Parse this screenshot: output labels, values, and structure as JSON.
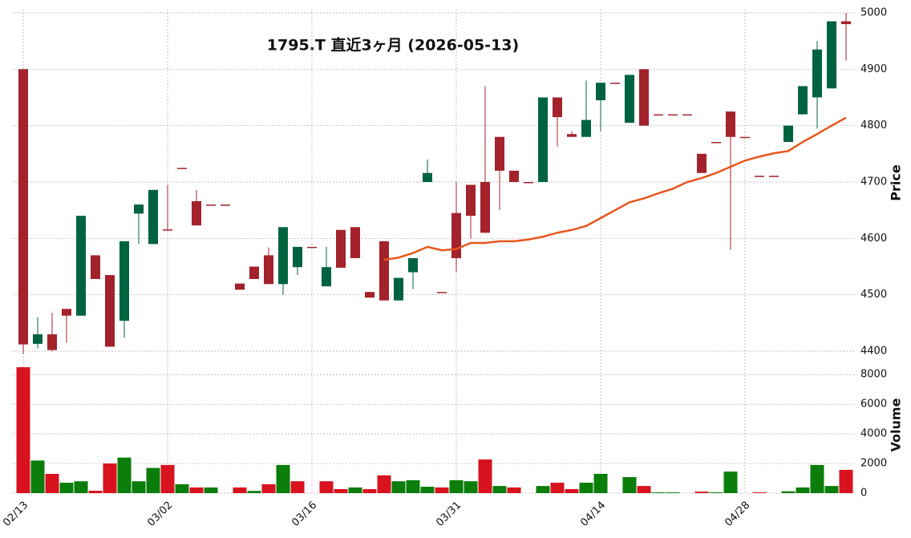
{
  "chart_data": {
    "type": "candlestick",
    "title": "1795.T  直近3ヶ月  (2026-05-13)",
    "categories": [
      "02/13",
      null,
      null,
      null,
      null,
      null,
      null,
      null,
      null,
      null,
      "03/02",
      null,
      null,
      null,
      null,
      null,
      null,
      null,
      null,
      null,
      "03/16",
      null,
      null,
      null,
      null,
      null,
      null,
      null,
      null,
      null,
      "03/31",
      null,
      null,
      null,
      null,
      null,
      null,
      null,
      null,
      null,
      "04/14",
      null,
      null,
      null,
      null,
      null,
      null,
      null,
      null,
      null,
      "04/28",
      null,
      null,
      null,
      null,
      null,
      null,
      null
    ],
    "open": [
      4900,
      4413,
      4430,
      4475,
      4463,
      4570,
      4535,
      4454,
      4644,
      4590,
      4616,
      4725,
      4666,
      4660,
      4660,
      4520,
      4550,
      4570,
      4519,
      4549,
      4585,
      4515,
      4615,
      4620,
      4505,
      4595,
      4490,
      4540,
      4700,
      4505,
      4645,
      4695,
      4700,
      4780,
      4720,
      4700,
      4700,
      4850,
      4785,
      4780,
      4845,
      4876,
      4805,
      4900,
      4820,
      4820,
      4820,
      4750,
      4771,
      4825,
      4780,
      4711,
      4711,
      4771,
      4820,
      4850,
      4866,
      4985
    ],
    "high": [
      4900,
      4460,
      4468,
      4475,
      4640,
      4570,
      4535,
      4595,
      4660,
      4686,
      4695,
      4725,
      4686,
      4660,
      4660,
      4520,
      4550,
      4584,
      4620,
      4585,
      4585,
      4585,
      4615,
      4620,
      4505,
      4595,
      4530,
      4565,
      4740,
      4505,
      4700,
      4695,
      4870,
      4780,
      4720,
      4700,
      4850,
      4850,
      4790,
      4880,
      4876,
      4876,
      4890,
      4900,
      4820,
      4820,
      4820,
      4750,
      4771,
      4825,
      4780,
      4711,
      4711,
      4800,
      4870,
      4950,
      4985,
      5000
    ],
    "low": [
      4395,
      4405,
      4400,
      4415,
      4463,
      4528,
      4408,
      4424,
      4590,
      4590,
      4614,
      4725,
      4623,
      4660,
      4660,
      4509,
      4528,
      4519,
      4500,
      4535,
      4585,
      4515,
      4549,
      4565,
      4495,
      4490,
      4490,
      4510,
      4700,
      4505,
      4540,
      4600,
      4610,
      4650,
      4700,
      4700,
      4700,
      4763,
      4780,
      4780,
      4790,
      4876,
      4805,
      4800,
      4820,
      4820,
      4820,
      4716,
      4771,
      4580,
      4780,
      4711,
      4711,
      4771,
      4820,
      4795,
      4866,
      4915
    ],
    "close": [
      4412,
      4430,
      4402,
      4463,
      4640,
      4528,
      4408,
      4595,
      4660,
      4686,
      4614,
      4725,
      4623,
      4660,
      4660,
      4509,
      4528,
      4519,
      4620,
      4585,
      4585,
      4549,
      4548,
      4565,
      4495,
      4490,
      4530,
      4565,
      4716,
      4505,
      4565,
      4640,
      4610,
      4720,
      4700,
      4700,
      4850,
      4815,
      4780,
      4810,
      4876,
      4876,
      4890,
      4800,
      4820,
      4820,
      4820,
      4716,
      4771,
      4780,
      4780,
      4711,
      4711,
      4800,
      4870,
      4935,
      4985,
      4980
    ],
    "volume": [
      8500,
      2200,
      1300,
      700,
      800,
      160,
      2000,
      2400,
      800,
      1700,
      1900,
      600,
      380,
      380,
      0,
      380,
      150,
      600,
      1900,
      800,
      0,
      800,
      270,
      380,
      270,
      1200,
      800,
      870,
      430,
      380,
      870,
      800,
      2270,
      480,
      380,
      0,
      480,
      700,
      270,
      700,
      1300,
      0,
      1080,
      480,
      50,
      50,
      0,
      100,
      50,
      1450,
      0,
      50,
      0,
      120,
      380,
      1900,
      480,
      1570
    ],
    "ma": [
      null,
      null,
      null,
      null,
      null,
      null,
      null,
      null,
      null,
      null,
      null,
      null,
      null,
      null,
      null,
      null,
      null,
      null,
      null,
      null,
      null,
      null,
      null,
      null,
      null,
      4562,
      4566,
      4574,
      4585,
      4579,
      4581,
      4592,
      4592,
      4595,
      4595,
      4598,
      4603,
      4610,
      4615,
      4622,
      4636,
      4650,
      4664,
      4671,
      4680,
      4688,
      4700,
      4707,
      4716,
      4727,
      4738,
      4745,
      4751,
      4755,
      4771,
      4785,
      4800,
      4814
    ],
    "up_color": "#006340",
    "down_color": "#a3222b",
    "volume_up_color": "#0a7d0a",
    "volume_down_color": "#d9121f",
    "ma_color": "#e8561c",
    "ylabel": "Price",
    "y2label": "Volume",
    "ylim": [
      4400,
      5000
    ],
    "yticks": [
      4400,
      4500,
      4600,
      4700,
      4800,
      4900,
      5000
    ],
    "y2lim": [
      0,
      8500
    ],
    "y2ticks": [
      0,
      2000,
      4000,
      6000,
      8000
    ],
    "grid": true
  }
}
